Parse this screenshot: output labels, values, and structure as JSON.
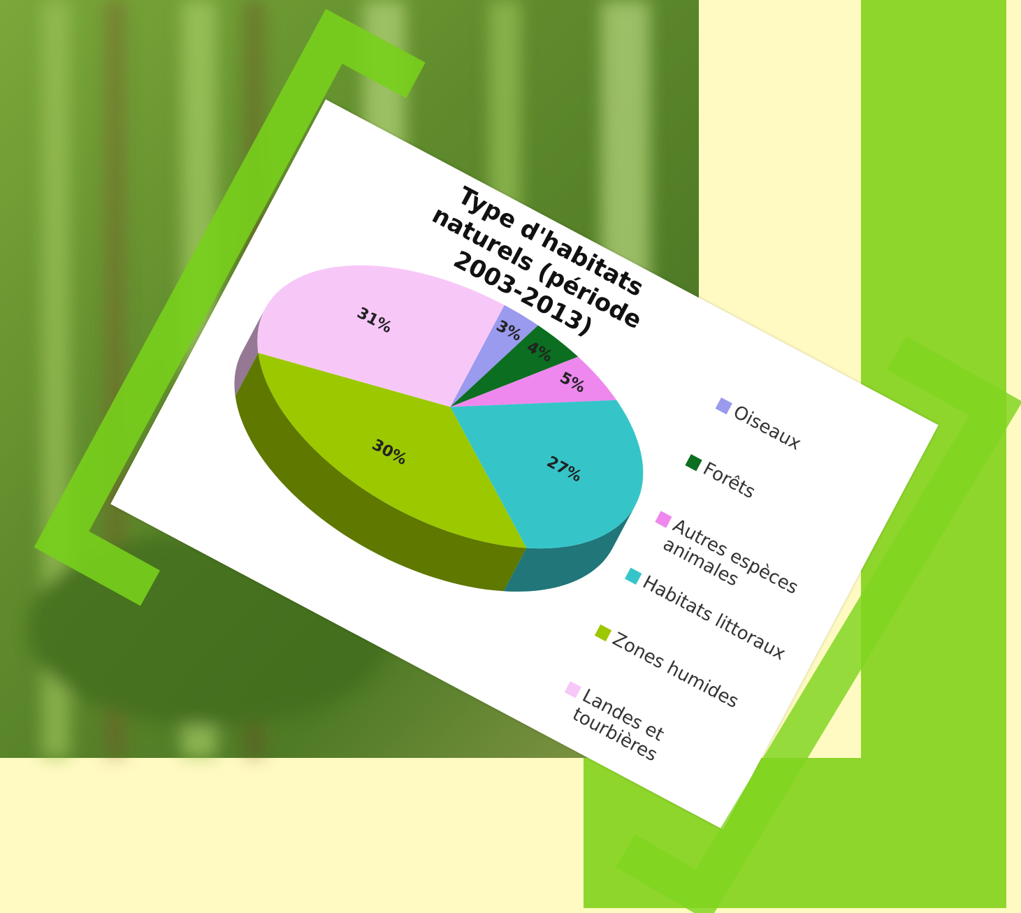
{
  "chart_data": {
    "type": "pie",
    "title": "Type d'habitats naturels (période 2003-2013)",
    "categories": [
      "Oiseaux",
      "Forêts",
      "Autres espèces animales",
      "Habitats littoraux",
      "Zones humides",
      "Landes et tourbières"
    ],
    "values": [
      3,
      4,
      5,
      27,
      30,
      31
    ],
    "value_labels": [
      "3%",
      "4%",
      "5%",
      "27%",
      "30%",
      "31%"
    ],
    "colors": [
      "#9a9aee",
      "#0b6e20",
      "#ee88ee",
      "#35c5c9",
      "#9cc800",
      "#f7c8f7"
    ],
    "legend": "right"
  }
}
